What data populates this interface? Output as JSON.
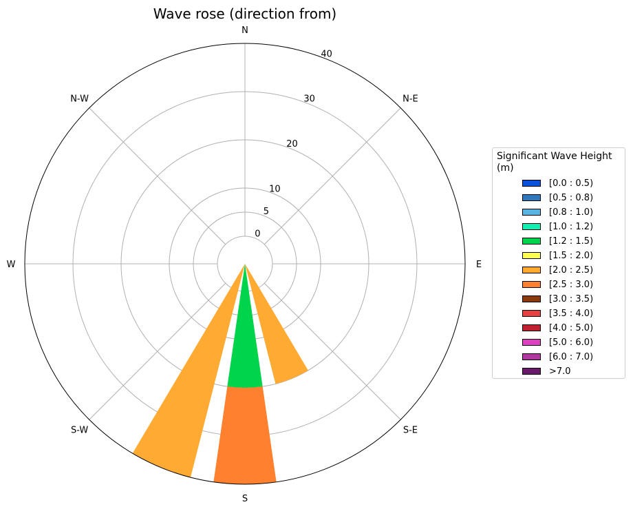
{
  "chart_data": {
    "type": "polar_bar",
    "title": "Wave rose (direction from)",
    "directions": [
      "N",
      "N-E",
      "E",
      "S-E",
      "S",
      "S-W",
      "W",
      "N-W"
    ],
    "radial_ticks": [
      0,
      5,
      10,
      20,
      30,
      40
    ],
    "radial_range": [
      0,
      40
    ],
    "grid": true,
    "legend": {
      "title": "Significant Wave Height (m)",
      "placement": "right",
      "entries": [
        {
          "label": "[0.0 : 0.5)",
          "color": "#0a50d8"
        },
        {
          "label": "[0.5 : 0.8)",
          "color": "#2e78c0"
        },
        {
          "label": "[0.8 : 1.0)",
          "color": "#5ab4e0"
        },
        {
          "label": "[1.0 : 1.2)",
          "color": "#10f0b0"
        },
        {
          "label": "[1.2 : 1.5)",
          "color": "#00d44a"
        },
        {
          "label": "[1.5 : 2.0)",
          "color": "#ffff50"
        },
        {
          "label": "[2.0 : 2.5)",
          "color": "#ffaa33"
        },
        {
          "label": "[2.5 : 3.0)",
          "color": "#ff802e"
        },
        {
          "label": "[3.0 : 3.5)",
          "color": "#8b3a0e"
        },
        {
          "label": "[3.5 : 4.0)",
          "color": "#e84040"
        },
        {
          "label": "[4.0 : 5.0)",
          "color": "#c02030"
        },
        {
          "label": "[5.0 : 6.0)",
          "color": "#e040c0"
        },
        {
          "label": "[6.0 : 7.0)",
          "color": "#b038a0"
        },
        {
          "label": ">7.0",
          "color": "#6a1a6a"
        }
      ]
    },
    "bars": [
      {
        "direction_deg": 157.5,
        "direction": "SSE",
        "segments": [
          {
            "bin": "[2.0 : 2.5)",
            "from": 0,
            "to": 20
          }
        ]
      },
      {
        "direction_deg": 180,
        "direction": "S",
        "segments": [
          {
            "bin": "[1.2 : 1.5)",
            "from": 0,
            "to": 20
          },
          {
            "bin": "[2.5 : 3.0)",
            "from": 20,
            "to": 40
          }
        ]
      },
      {
        "direction_deg": 202.5,
        "direction": "SSW",
        "segments": [
          {
            "bin": "[2.0 : 2.5)",
            "from": 0,
            "to": 40
          }
        ]
      }
    ]
  }
}
